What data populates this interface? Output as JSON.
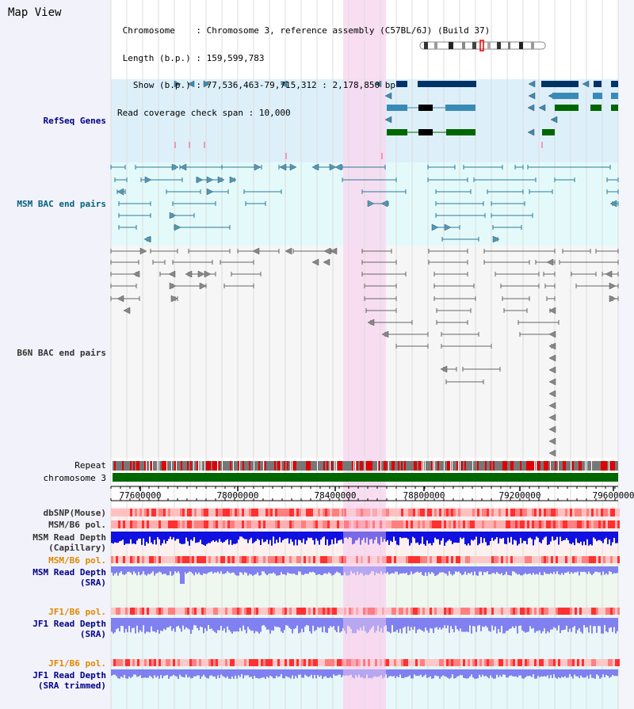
{
  "view": {
    "title": "Map View"
  },
  "header": {
    "chromosome_label": "Chromosome",
    "chromosome_value": "Chromosome 3, reference assembly (C57BL/6J) (Build 37)",
    "length_label": "Length (b.p.)",
    "length_value": "159,599,783",
    "show_label": "Show (b.p.)",
    "show_value": "77,536,463-79,715,312 : 2,178,850 bp",
    "coverage_label": "Read coverage check span",
    "coverage_value": "10,000"
  },
  "tracks": {
    "refseq": "RefSeq Genes",
    "msm_bac": "MSM BAC end pairs",
    "b6n_bac": "B6N BAC end pairs",
    "repeat": "Repeat",
    "chromosome": "chromosome 3",
    "dbsnp": "dbSNP(Mouse)",
    "msm_b6_pol_1": "MSM/B6 pol.",
    "msm_depth_cap_1": "MSM Read Depth",
    "msm_depth_cap_2": "(Capillary)",
    "msm_b6_pol_2": "MSM/B6 pol.",
    "msm_depth_sra_1": "MSM Read Depth",
    "msm_depth_sra_2": "(SRA)",
    "jf1_pol_1": "JF1/B6 pol.",
    "jf1_depth_1": "JF1 Read Depth",
    "jf1_depth_1b": "(SRA)",
    "jf1_pol_2": "JF1/B6 pol.",
    "jf1_depth_2": "JF1 Read Depth",
    "jf1_depth_2b": "(SRA trimmed)"
  },
  "axis": {
    "ticks": [
      "77600000",
      "78000000",
      "78400000",
      "78800000",
      "79200000",
      "79600000"
    ]
  },
  "colors": {
    "highlight": "#f8d8f0",
    "refseq_bg": "#ddf0fa",
    "gene_dark": "#003366",
    "gene_mid": "#3a8ab8",
    "gene_green": "#006600",
    "msm_bac": "#2a7a9a",
    "b6n_bac": "#666666",
    "chromosome": "#006600",
    "depth_blue": "#1010e0",
    "depth_light": "#8080f0"
  }
}
